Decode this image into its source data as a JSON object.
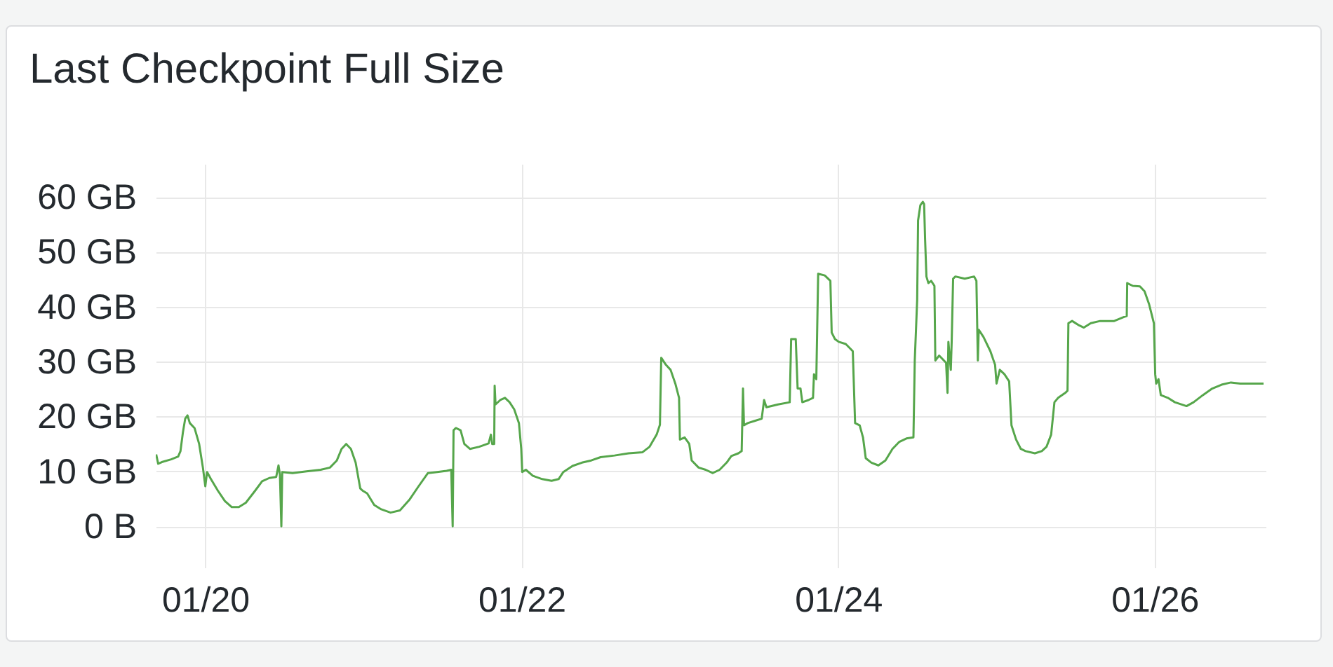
{
  "chart_data": {
    "type": "line",
    "title": "Last Checkpoint Full Size",
    "color": "#56a64b",
    "grid": true,
    "xlim": [
      "--01-19T16:30",
      "--01-26T16:50"
    ],
    "xticks": [
      {
        "value": "--01-20",
        "label": "01/20"
      },
      {
        "value": "--01-22",
        "label": "01/22"
      },
      {
        "value": "--01-24",
        "label": "01/24"
      },
      {
        "value": "--01-26",
        "label": "01/26"
      }
    ],
    "ylim": [
      -7.5,
      66
    ],
    "yticks": [
      {
        "value": 0,
        "label": "0 B"
      },
      {
        "value": 10,
        "label": "10 GB"
      },
      {
        "value": 20,
        "label": "20 GB"
      },
      {
        "value": 30,
        "label": "30 GB"
      },
      {
        "value": 40,
        "label": "40 GB"
      },
      {
        "value": 50,
        "label": "50 GB"
      },
      {
        "value": 60,
        "label": "60 GB"
      }
    ],
    "x": [
      "--01-19T16:34",
      "--01-19T16:52",
      "--01-19T17:25",
      "--01-19T18:50",
      "--01-19T19:54",
      "--01-19T20:15",
      "--01-19T20:37",
      "--01-19T20:58",
      "--01-19T21:19",
      "--01-19T21:40",
      "--01-19T22:23",
      "--01-19T23:05",
      "--01-19T23:39",
      "--01-20T00:01",
      "--01-20T00:17",
      "--01-20T00:52",
      "--01-20T01:55",
      "--01-20T02:59",
      "--01-20T04:02",
      "--01-20T05:06",
      "--01-20T06:10",
      "--01-20T07:35",
      "--01-20T08:38",
      "--01-20T09:43",
      "--01-20T10:46",
      "--01-20T11:07",
      "--01-20T11:20",
      "--01-20T11:33",
      "--01-20T11:41",
      "--01-20T13:15",
      "--01-20T15:22",
      "--01-20T17:30",
      "--01-20T18:55",
      "--01-20T19:58",
      "--01-20T20:41",
      "--01-20T21:23",
      "--01-20T22:06",
      "--01-20T22:49",
      "--01-20T23:31",
      "--01-20T23:52",
      "--01-21T00:34",
      "--01-21T01:38",
      "--01-21T02:42",
      "--01-21T04:07",
      "--01-21T05:32",
      "--01-21T06:57",
      "--01-21T08:22",
      "--01-21T09:47",
      "--01-21T11:11",
      "--01-21T12:37",
      "--01-21T13:19",
      "--01-21T13:32",
      "--01-21T13:40",
      "--01-21T14:01",
      "--01-21T14:44",
      "--01-21T15:18",
      "--01-21T16:09",
      "--01-21T17:34",
      "--01-21T18:59",
      "--01-21T19:20",
      "--01-21T19:32",
      "--01-21T19:50",
      "--01-21T19:54",
      "--01-21T20:02",
      "--01-21T20:45",
      "--01-21T21:28",
      "--01-21T22:10",
      "--01-21T22:52",
      "--01-21T23:35",
      "--01-21T23:56",
      "--01-22T00:05",
      "--01-22T00:38",
      "--01-22T01:42",
      "--01-22T03:07",
      "--01-22T04:32",
      "--01-22T05:36",
      "--01-22T06:19",
      "--01-22T07:43",
      "--01-22T09:08",
      "--01-22T10:33",
      "--01-22T11:58",
      "--01-22T14:05",
      "--01-22T16:13",
      "--01-22T18:20",
      "--01-22T19:24",
      "--01-22T20:28",
      "--01-22T20:58",
      "--01-22T21:10",
      "--01-22T21:53",
      "--01-22T22:35",
      "--01-22T23:18",
      "--01-22T23:52",
      "--01-23T00:00",
      "--01-23T00:43",
      "--01-23T01:25",
      "--01-23T01:47",
      "--01-23T02:50",
      "--01-23T03:54",
      "--01-23T04:58",
      "--01-23T06:01",
      "--01-23T07:05",
      "--01-23T07:48",
      "--01-23T08:52",
      "--01-23T09:22",
      "--01-23T09:34",
      "--01-23T09:43",
      "--01-23T10:17",
      "--01-23T11:20",
      "--01-23T12:24",
      "--01-23T12:46",
      "--01-23T13:07",
      "--01-23T14:53",
      "--01-23T16:39",
      "--01-23T16:52",
      "--01-23T17:34",
      "--01-23T17:51",
      "--01-23T18:17",
      "--01-23T18:34",
      "--01-23T19:29",
      "--01-23T20:11",
      "--01-23T20:20",
      "--01-23T20:41",
      "--01-23T20:58",
      "--01-23T21:58",
      "--01-23T22:49",
      "--01-23T23:01",
      "--01-23T23:31",
      "--01-24T00:05",
      "--01-24T01:09",
      "--01-24T02:13",
      "--01-24T02:34",
      "--01-24T03:16",
      "--01-24T03:46",
      "--01-24T04:11",
      "--01-24T05:02",
      "--01-24T06:06",
      "--01-24T07:10",
      "--01-24T08:14",
      "--01-24T09:17",
      "--01-24T10:21",
      "--01-24T11:25",
      "--01-24T11:37",
      "--01-24T11:59",
      "--01-24T12:07",
      "--01-24T12:28",
      "--01-24T12:50",
      "--01-24T13:02",
      "--01-24T13:11",
      "--01-24T13:23",
      "--01-24T13:41",
      "--01-24T14:06",
      "--01-24T14:36",
      "--01-24T14:44",
      "--01-24T15:19",
      "--01-24T16:22",
      "--01-24T16:35",
      "--01-24T16:43",
      "--01-24T17:05",
      "--01-24T17:13",
      "--01-24T17:26",
      "--01-24T17:47",
      "--01-24T19:12",
      "--01-24T20:37",
      "--01-24T20:58",
      "--01-24T21:11",
      "--01-24T21:19",
      "--01-24T22:02",
      "--01-24T23:05",
      "--01-24T23:48",
      "--01-25T00:01",
      "--01-25T00:31",
      "--01-25T01:13",
      "--01-25T01:56",
      "--01-25T02:17",
      "--01-25T02:59",
      "--01-25T03:42",
      "--01-25T04:25",
      "--01-25T05:50",
      "--01-25T06:53",
      "--01-25T07:36",
      "--01-25T08:18",
      "--01-25T08:48",
      "--01-25T09:22",
      "--01-25T10:26",
      "--01-25T10:47",
      "--01-25T10:55",
      "--01-25T11:29",
      "--01-25T12:33",
      "--01-25T13:16",
      "--01-25T14:19",
      "--01-25T15:44",
      "--01-25T17:52",
      "--01-25T19:17",
      "--01-25T19:46",
      "--01-25T19:50",
      "--01-25T20:41",
      "--01-25T21:46",
      "--01-25T22:28",
      "--01-25T23:10",
      "--01-25T23:53",
      "--01-26T00:05",
      "--01-26T00:14",
      "--01-26T00:35",
      "--01-26T00:56",
      "--01-26T02:00",
      "--01-26T03:04",
      "--01-26T04:50",
      "--01-26T05:54",
      "--01-26T07:19",
      "--01-26T08:44",
      "--01-26T10:09",
      "--01-26T11:34",
      "--01-26T12:59",
      "--01-26T14:23",
      "--01-26T16:31"
    ],
    "values": [
      13.1,
      11.4,
      11.7,
      12.2,
      12.7,
      13.7,
      17.1,
      19.6,
      20.2,
      18.8,
      17.9,
      15.0,
      10.7,
      7.3,
      9.9,
      8.6,
      6.5,
      4.6,
      3.5,
      3.5,
      4.3,
      6.5,
      8.2,
      8.8,
      9.0,
      11.1,
      9.4,
      0,
      9.9,
      9.7,
      10.0,
      10.3,
      10.7,
      12.0,
      14.1,
      15.0,
      14.1,
      11.6,
      6.9,
      6.5,
      6.0,
      3.9,
      3.1,
      2.5,
      2.9,
      4.8,
      7.3,
      9.7,
      9.9,
      10.1,
      10.3,
      0,
      17.5,
      17.9,
      17.5,
      15.0,
      14.1,
      14.5,
      15.1,
      16.7,
      15.0,
      15.0,
      25.6,
      22.2,
      23.0,
      23.4,
      22.6,
      21.3,
      18.8,
      14.1,
      9.9,
      10.3,
      9.2,
      8.6,
      8.3,
      8.6,
      9.9,
      11.0,
      11.6,
      12.0,
      12.6,
      12.9,
      13.3,
      13.5,
      14.5,
      16.7,
      18.5,
      30.7,
      29.4,
      28.5,
      26.0,
      23.4,
      15.8,
      16.2,
      15.0,
      12.0,
      10.7,
      10.3,
      9.7,
      10.3,
      11.6,
      12.8,
      13.3,
      13.7,
      25.1,
      18.4,
      18.8,
      19.2,
      19.6,
      23.0,
      21.7,
      22.2,
      22.6,
      34.1,
      34.1,
      25.1,
      25.1,
      22.6,
      23.0,
      23.4,
      27.7,
      26.8,
      46.0,
      45.7,
      44.7,
      35.3,
      34.1,
      33.6,
      33.2,
      31.9,
      18.8,
      18.4,
      16.2,
      12.4,
      11.6,
      11.1,
      12.0,
      14.1,
      15.4,
      16.0,
      16.2,
      30.2,
      41.3,
      55.7,
      58.5,
      59.1,
      58.7,
      52.3,
      45.5,
      44.3,
      44.7,
      43.8,
      30.2,
      31.1,
      29.8,
      24.3,
      33.6,
      28.5,
      33.6,
      45.1,
      45.5,
      45.1,
      45.5,
      44.7,
      30.2,
      35.8,
      34.5,
      31.9,
      29.4,
      26.0,
      28.5,
      27.7,
      26.4,
      18.4,
      15.8,
      14.1,
      13.7,
      13.3,
      13.7,
      14.5,
      16.7,
      22.6,
      23.4,
      24.3,
      24.7,
      37.0,
      37.4,
      36.6,
      36.2,
      37.0,
      37.4,
      37.4,
      38.1,
      38.3,
      44.3,
      43.8,
      43.7,
      42.8,
      40.4,
      37.0,
      27.7,
      26.0,
      26.8,
      23.9,
      23.4,
      22.6,
      21.9,
      22.6,
      23.9,
      25.1,
      25.8,
      26.2,
      26.0,
      26.0,
      26.0
    ]
  }
}
